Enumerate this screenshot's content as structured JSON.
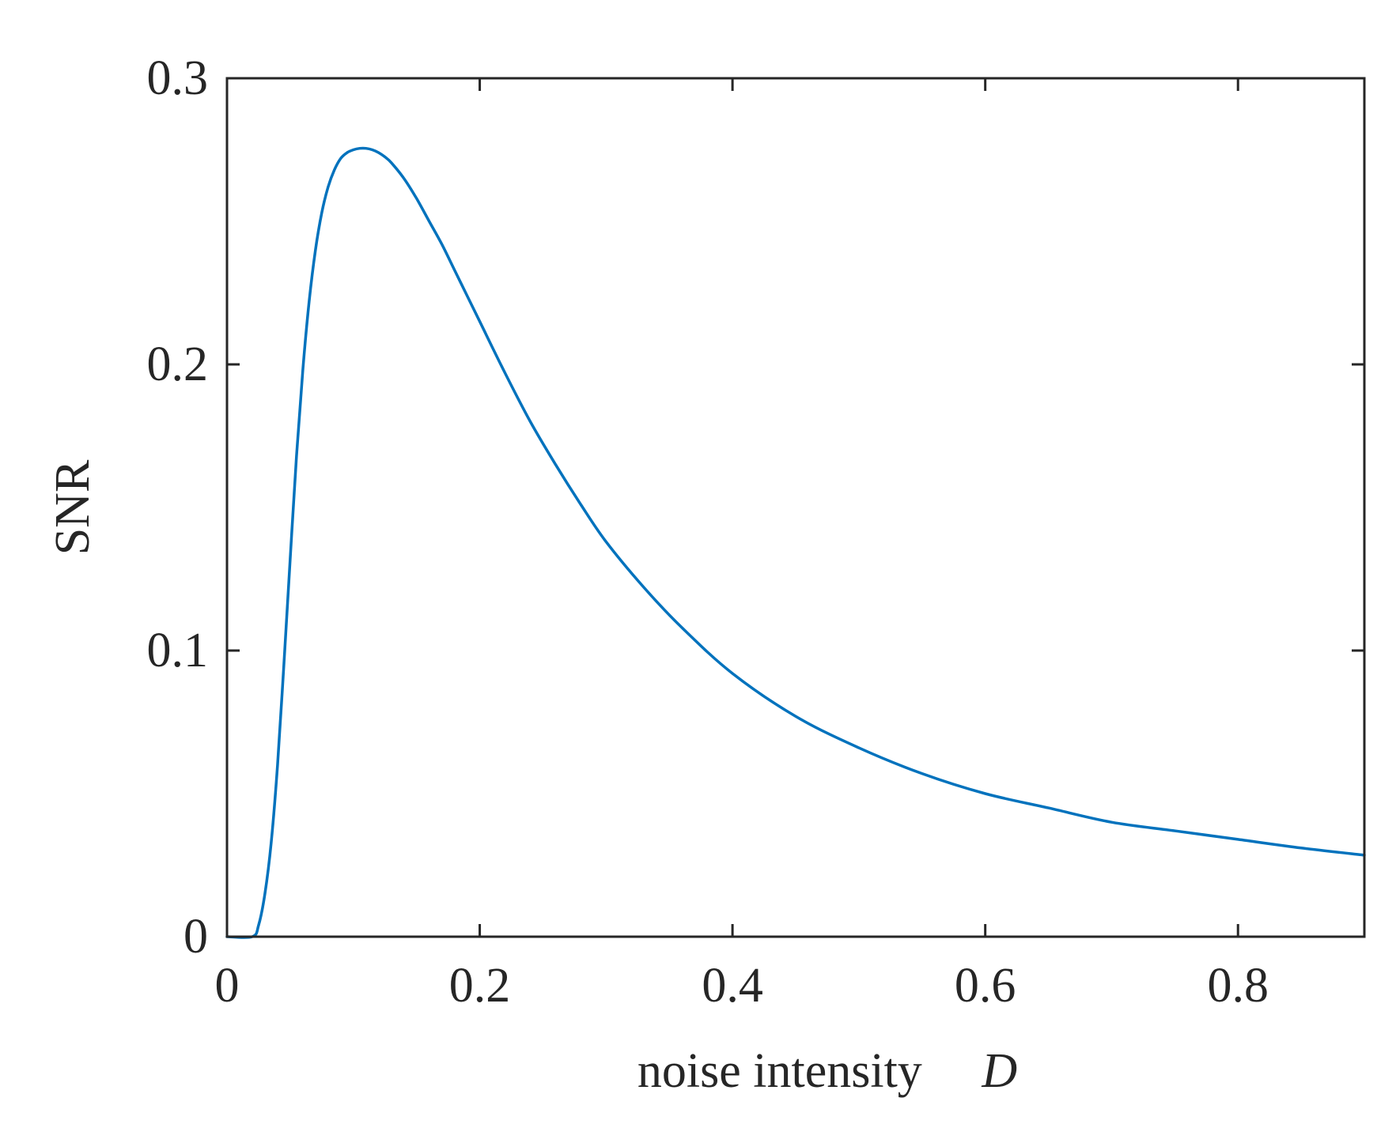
{
  "chart_data": {
    "type": "line",
    "title": "",
    "xlabel": "noise intensity",
    "xlabel_symbol": "D",
    "ylabel": "SNR",
    "xlim": [
      0,
      0.9
    ],
    "ylim": [
      0,
      0.3
    ],
    "xticks": [
      0,
      0.2,
      0.4,
      0.6,
      0.8
    ],
    "xtick_labels": [
      "0",
      "0.2",
      "0.4",
      "0.6",
      "0.8"
    ],
    "yticks": [
      0,
      0.1,
      0.2,
      0.3
    ],
    "ytick_labels": [
      "0",
      "0.1",
      "0.2",
      "0.3"
    ],
    "grid": false,
    "series": [
      {
        "color": "#0072BD",
        "x": [
          0,
          0.02,
          0.025,
          0.03,
          0.035,
          0.04,
          0.045,
          0.05,
          0.055,
          0.06,
          0.065,
          0.07,
          0.075,
          0.08,
          0.085,
          0.09,
          0.095,
          0.1,
          0.105,
          0.11,
          0.115,
          0.12,
          0.125,
          0.13,
          0.14,
          0.15,
          0.16,
          0.17,
          0.18,
          0.19,
          0.2,
          0.22,
          0.24,
          0.26,
          0.28,
          0.3,
          0.33,
          0.36,
          0.4,
          0.45,
          0.5,
          0.55,
          0.6,
          0.65,
          0.7,
          0.75,
          0.8,
          0.85,
          0.9
        ],
        "y": [
          0,
          0.0,
          0.004,
          0.015,
          0.033,
          0.06,
          0.095,
          0.132,
          0.168,
          0.198,
          0.222,
          0.24,
          0.253,
          0.262,
          0.268,
          0.272,
          0.274,
          0.275,
          0.2755,
          0.2755,
          0.275,
          0.274,
          0.2725,
          0.2705,
          0.265,
          0.258,
          0.25,
          0.242,
          0.233,
          0.224,
          0.215,
          0.197,
          0.18,
          0.165,
          0.151,
          0.138,
          0.122,
          0.108,
          0.092,
          0.077,
          0.066,
          0.057,
          0.05,
          0.045,
          0.04,
          0.037,
          0.034,
          0.031,
          0.0285
        ]
      }
    ]
  }
}
